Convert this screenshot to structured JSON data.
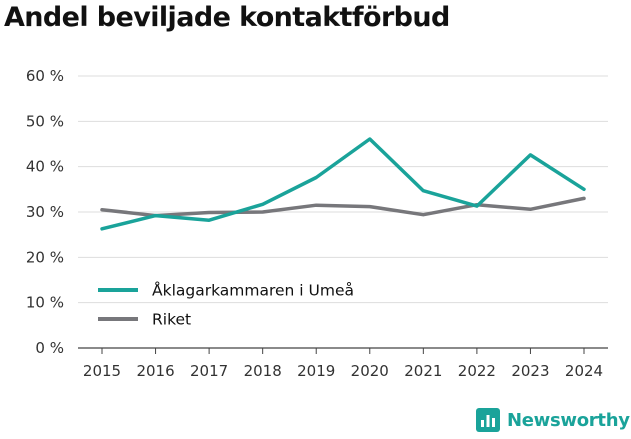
{
  "title": "Andel beviljade kontaktförbud",
  "chart_data": {
    "type": "line",
    "x": [
      "2015",
      "2016",
      "2017",
      "2018",
      "2019",
      "2020",
      "2021",
      "2022",
      "2023",
      "2024"
    ],
    "series": [
      {
        "name": "Åklagarkammaren i Umeå",
        "color": "#1aa39a",
        "values": [
          26.3,
          29.2,
          28.2,
          31.7,
          37.6,
          46.1,
          34.7,
          31.3,
          42.6,
          35.0
        ]
      },
      {
        "name": "Riket",
        "color": "#77777b",
        "values": [
          30.5,
          29.2,
          29.9,
          30.0,
          31.5,
          31.2,
          29.4,
          31.6,
          30.6,
          33.0
        ]
      }
    ],
    "yticks": [
      "0 %",
      "10 %",
      "20 %",
      "30 %",
      "40 %",
      "50 %",
      "60 %"
    ],
    "ylim": [
      0,
      60
    ],
    "ylabel": "",
    "xlabel": "",
    "grid": true,
    "legend": "bottom-left"
  },
  "brand": {
    "name": "Newsworthy",
    "color": "#1aa39a",
    "icon": "bar-chart-icon"
  }
}
